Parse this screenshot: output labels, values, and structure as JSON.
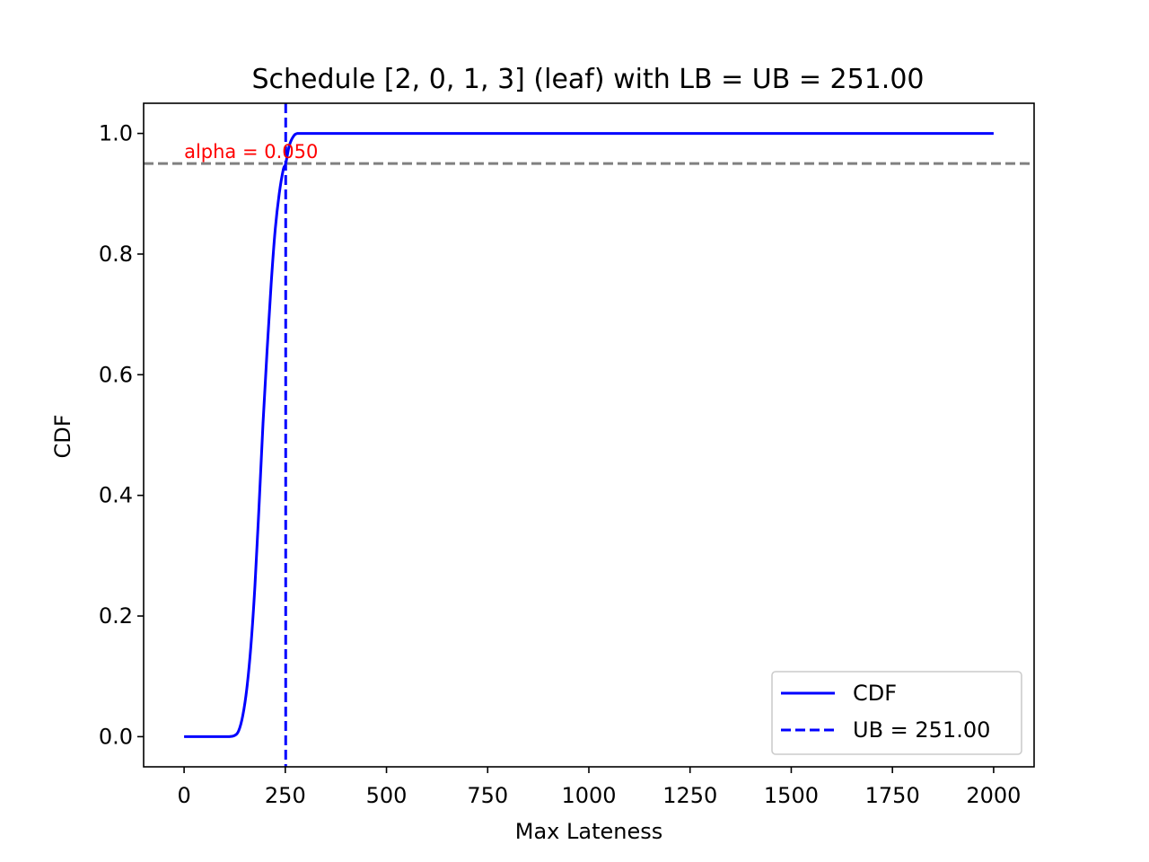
{
  "chart_data": {
    "type": "line",
    "title": "Schedule [2, 0, 1, 3] (leaf) with LB = UB = 251.00",
    "xlabel": "Max Lateness",
    "ylabel": "CDF",
    "xlim": [
      -100,
      2100
    ],
    "ylim": [
      -0.05,
      1.05
    ],
    "xticks": [
      0,
      250,
      500,
      750,
      1000,
      1250,
      1500,
      1750,
      2000
    ],
    "xtick_labels": [
      "0",
      "250",
      "500",
      "750",
      "1000",
      "1250",
      "1500",
      "1750",
      "2000"
    ],
    "yticks": [
      0.0,
      0.2,
      0.4,
      0.6,
      0.8,
      1.0
    ],
    "ytick_labels": [
      "0.0",
      "0.2",
      "0.4",
      "0.6",
      "0.8",
      "1.0"
    ],
    "grid": false,
    "legend_position": "lower-right",
    "series": [
      {
        "name": "CDF",
        "style": "solid",
        "color": "#0000ff",
        "x": [
          0,
          80,
          110,
          125,
          135,
          145,
          155,
          165,
          175,
          185,
          195,
          205,
          215,
          225,
          235,
          245,
          251,
          260,
          270,
          280,
          300,
          400,
          1000,
          2000
        ],
        "y": [
          0.0,
          0.0,
          0.0,
          0.002,
          0.01,
          0.035,
          0.08,
          0.15,
          0.25,
          0.38,
          0.52,
          0.64,
          0.75,
          0.84,
          0.9,
          0.94,
          0.95,
          0.98,
          0.995,
          1.0,
          1.0,
          1.0,
          1.0,
          1.0
        ]
      }
    ],
    "reference_lines": [
      {
        "name": "UB = 251.00",
        "orientation": "vertical",
        "x": 251,
        "style": "dashed",
        "color": "#0000ff"
      },
      {
        "orientation": "horizontal",
        "y": 0.95,
        "style": "dashed",
        "color": "#808080"
      }
    ],
    "annotations": [
      {
        "text": "alpha = 0.050",
        "x": 0,
        "y": 0.95,
        "color": "#ff0000"
      }
    ],
    "legend": {
      "entries": [
        {
          "label": "CDF",
          "style": "solid",
          "color": "#0000ff"
        },
        {
          "label": "UB = 251.00",
          "style": "dashed",
          "color": "#0000ff"
        }
      ]
    }
  }
}
